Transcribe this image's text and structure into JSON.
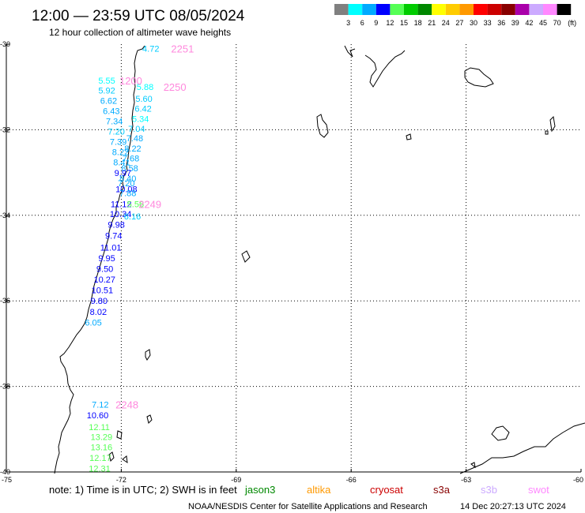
{
  "header": {
    "title": "12:00 — 23:59 UTC 08/05/2024",
    "subtitle": "12 hour collection of altimeter wave heights"
  },
  "legend": {
    "labels": [
      "3",
      "6",
      "9",
      "12",
      "15",
      "18",
      "21",
      "24",
      "27",
      "30",
      "33",
      "36",
      "39",
      "42",
      "45",
      "70"
    ],
    "unit": "(ft)",
    "colors": [
      "#808080",
      "#00ffff",
      "#00aaff",
      "#0000ff",
      "#55ff55",
      "#00cc00",
      "#008800",
      "#ffff00",
      "#ffcc00",
      "#ff9900",
      "#ff0000",
      "#cc0000",
      "#880000",
      "#aa00aa",
      "#ccaaff",
      "#ff88ff",
      "#000000"
    ]
  },
  "map": {
    "lat_labels": [
      "-30",
      "-32",
      "-34",
      "-36",
      "-38",
      "-40"
    ],
    "lon_labels": [
      "-75",
      "-72",
      "-69",
      "-66",
      "-63",
      "-60"
    ]
  },
  "observations": [
    {
      "v": "4.72",
      "lat": -30.1,
      "lon": -71.45,
      "c": "#00ccff"
    },
    {
      "v": "5.55",
      "lat": -30.85,
      "lon": -72.6,
      "c": "#00ffff"
    },
    {
      "v": "5.88",
      "lat": -31.0,
      "lon": -71.6,
      "c": "#00ffff"
    },
    {
      "v": "5.92",
      "lat": -31.08,
      "lon": -72.6,
      "c": "#00ccff"
    },
    {
      "v": "5.60",
      "lat": -31.27,
      "lon": -71.63,
      "c": "#00ccff"
    },
    {
      "v": "6.62",
      "lat": -31.32,
      "lon": -72.55,
      "c": "#00aaff"
    },
    {
      "v": "6.42",
      "lat": -31.5,
      "lon": -71.65,
      "c": "#00ccff"
    },
    {
      "v": "6.43",
      "lat": -31.56,
      "lon": -72.48,
      "c": "#00aaff"
    },
    {
      "v": "5.34",
      "lat": -31.74,
      "lon": -71.72,
      "c": "#00ffff"
    },
    {
      "v": "7.34",
      "lat": -31.8,
      "lon": -72.4,
      "c": "#00aaff"
    },
    {
      "v": "7.04",
      "lat": -31.97,
      "lon": -71.82,
      "c": "#00ccff"
    },
    {
      "v": "7.20",
      "lat": -32.04,
      "lon": -72.35,
      "c": "#00ccff"
    },
    {
      "v": "7.48",
      "lat": -32.2,
      "lon": -71.87,
      "c": "#00aaff"
    },
    {
      "v": "7.39",
      "lat": -32.28,
      "lon": -72.3,
      "c": "#00aaff"
    },
    {
      "v": "8.22",
      "lat": -32.44,
      "lon": -71.92,
      "c": "#00aaff"
    },
    {
      "v": "8.22",
      "lat": -32.52,
      "lon": -72.24,
      "c": "#00aaff"
    },
    {
      "v": "7.68",
      "lat": -32.67,
      "lon": -71.97,
      "c": "#00aaff"
    },
    {
      "v": "8.41",
      "lat": -32.76,
      "lon": -72.21,
      "c": "#00aaff"
    },
    {
      "v": "8.58",
      "lat": -32.9,
      "lon": -72.0,
      "c": "#00aaff"
    },
    {
      "v": "9.97",
      "lat": -33.01,
      "lon": -72.18,
      "c": "#0000ff"
    },
    {
      "v": "8.40",
      "lat": -33.14,
      "lon": -72.05,
      "c": "#00aaff"
    },
    {
      "v": "7.20",
      "lat": -33.25,
      "lon": -72.09,
      "c": "#00aaff"
    },
    {
      "v": "10.08",
      "lat": -33.39,
      "lon": -72.15,
      "c": "#0000ff"
    },
    {
      "v": "7.88",
      "lat": -33.48,
      "lon": -72.05,
      "c": "#00aaff"
    },
    {
      "v": "11.12",
      "lat": -33.74,
      "lon": -72.28,
      "c": "#0000ff"
    },
    {
      "v": "5.56",
      "lat": -33.74,
      "lon": -71.85,
      "c": "#55ff55"
    },
    {
      "v": "10.34",
      "lat": -33.97,
      "lon": -72.3,
      "c": "#0000ff"
    },
    {
      "v": "6.16",
      "lat": -34.02,
      "lon": -71.93,
      "c": "#00ccff"
    },
    {
      "v": "9.98",
      "lat": -34.22,
      "lon": -72.35,
      "c": "#0000ff"
    },
    {
      "v": "9.74",
      "lat": -34.47,
      "lon": -72.42,
      "c": "#0000ff"
    },
    {
      "v": "11.01",
      "lat": -34.75,
      "lon": -72.55,
      "c": "#0000ff"
    },
    {
      "v": "9.95",
      "lat": -35.0,
      "lon": -72.6,
      "c": "#0000ff"
    },
    {
      "v": "9.50",
      "lat": -35.25,
      "lon": -72.65,
      "c": "#0000ff"
    },
    {
      "v": "10.27",
      "lat": -35.5,
      "lon": -72.72,
      "c": "#0000ff"
    },
    {
      "v": "10.51",
      "lat": -35.75,
      "lon": -72.78,
      "c": "#0000ff"
    },
    {
      "v": "9.80",
      "lat": -36.0,
      "lon": -72.8,
      "c": "#0000ff"
    },
    {
      "v": "8.02",
      "lat": -36.25,
      "lon": -72.82,
      "c": "#0000ff"
    },
    {
      "v": "6.05",
      "lat": -36.5,
      "lon": -72.95,
      "c": "#00aaff"
    },
    {
      "v": "7.12",
      "lat": -38.42,
      "lon": -72.77,
      "c": "#00aaff"
    },
    {
      "v": "10.60",
      "lat": -38.67,
      "lon": -72.9,
      "c": "#0000ff"
    },
    {
      "v": "12.11",
      "lat": -38.95,
      "lon": -72.85,
      "c": "#55ff55"
    },
    {
      "v": "13.29",
      "lat": -39.18,
      "lon": -72.8,
      "c": "#55ff55"
    },
    {
      "v": "13.16",
      "lat": -39.42,
      "lon": -72.8,
      "c": "#55ff55"
    },
    {
      "v": "12.17",
      "lat": -39.67,
      "lon": -72.83,
      "c": "#55ff55"
    },
    {
      "v": "12.31",
      "lat": -39.92,
      "lon": -72.85,
      "c": "#55ff55"
    }
  ],
  "time_labels": [
    {
      "t": "2251",
      "lat": -30.1,
      "lon": -70.7
    },
    {
      "t": "1200",
      "lat": -30.85,
      "lon": -72.05
    },
    {
      "t": "2250",
      "lat": -31.0,
      "lon": -70.9
    },
    {
      "t": "2249",
      "lat": -33.74,
      "lon": -71.55
    },
    {
      "t": "2248",
      "lat": -38.42,
      "lon": -72.15
    }
  ],
  "footer": {
    "note": "note:  1) Time is in UTC; 2) SWH is in feet",
    "satellites": [
      {
        "name": "jason3",
        "color": "#008800"
      },
      {
        "name": "altika",
        "color": "#ff9900"
      },
      {
        "name": "cryosat",
        "color": "#cc0000"
      },
      {
        "name": "s3a",
        "color": "#880000"
      },
      {
        "name": "s3b",
        "color": "#ccaaff"
      },
      {
        "name": "swot",
        "color": "#ff88ff"
      }
    ],
    "credit": "NOAA/NESDIS Center for Satellite Applications and Research",
    "timestamp": "14 Dec 20:27:13 UTC 2024"
  }
}
